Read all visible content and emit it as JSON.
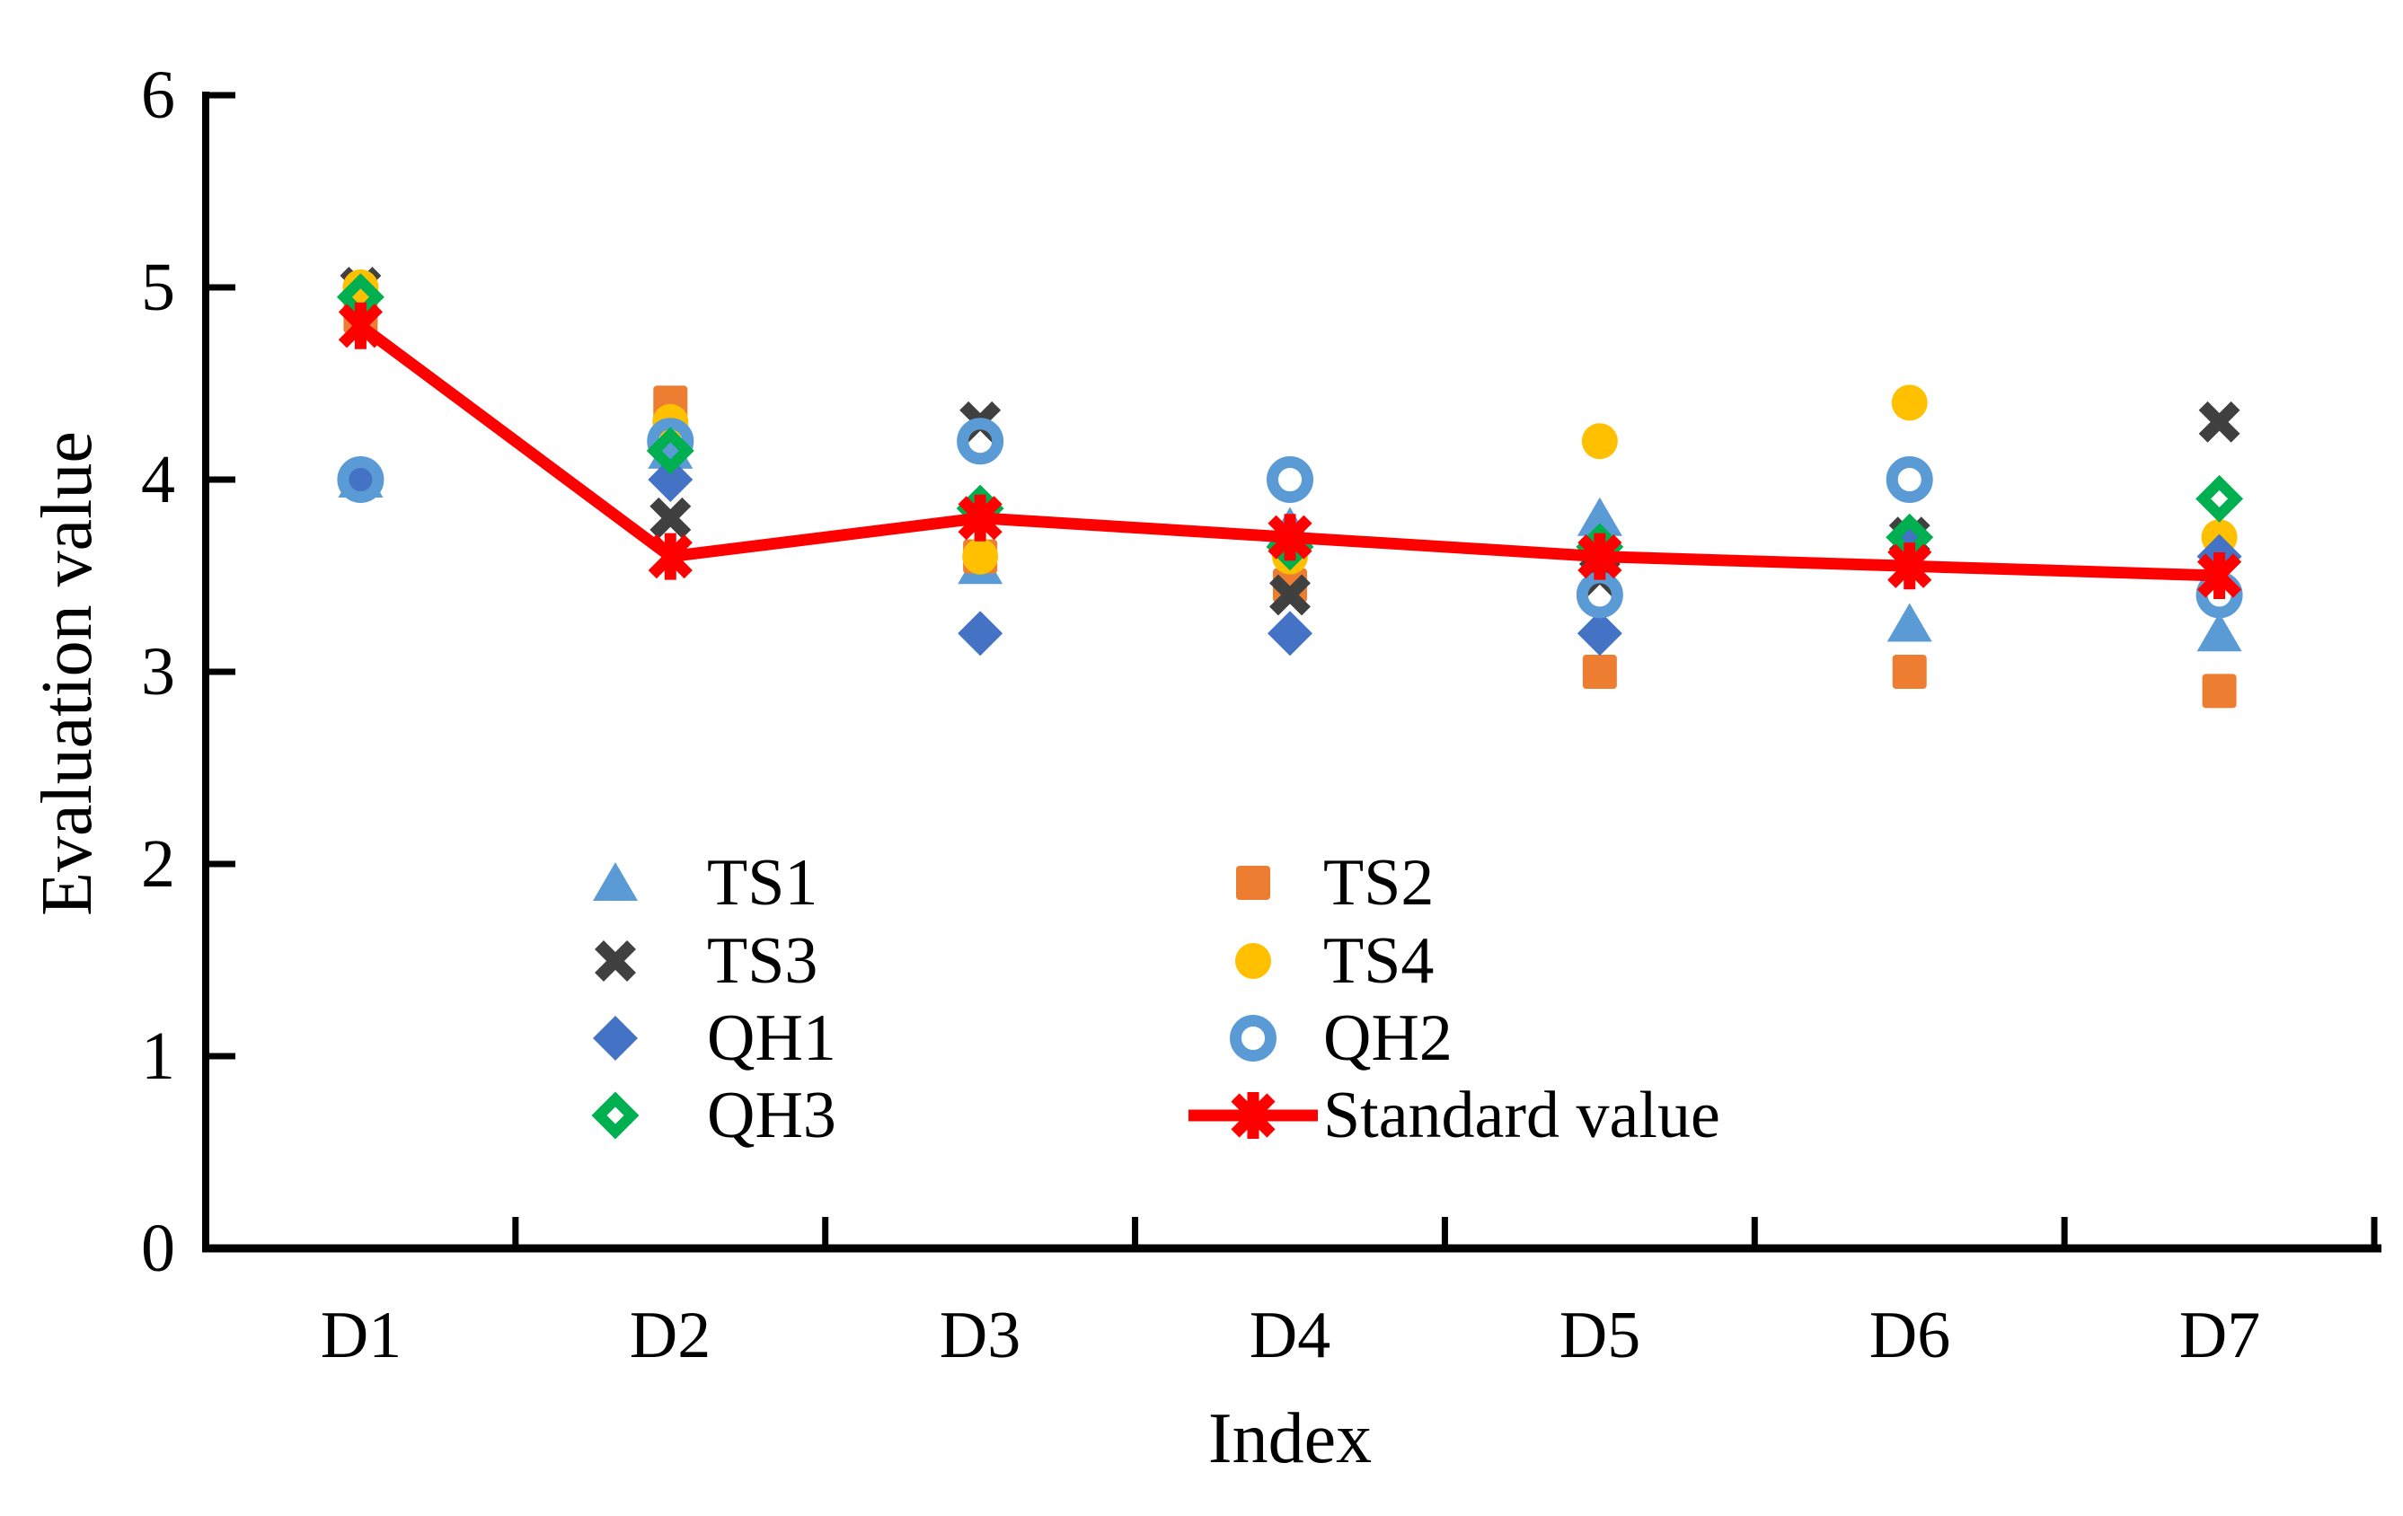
{
  "chart_data": {
    "type": "scatter",
    "title": "",
    "xlabel": "Index",
    "ylabel": "Evaluation value",
    "categories": [
      "D1",
      "D2",
      "D3",
      "D4",
      "D5",
      "D6",
      "D7"
    ],
    "ylim": [
      0,
      6
    ],
    "ytick_labels": [
      "0",
      "1",
      "2",
      "3",
      "4",
      "5",
      "6"
    ],
    "grid": "off",
    "legend_position": "inside-lower-center, two columns",
    "series": [
      {
        "name": "TS1",
        "marker": "triangle",
        "color": "#5B9BD5",
        "values": [
          4.0,
          4.15,
          3.55,
          3.75,
          3.8,
          3.25,
          3.2
        ]
      },
      {
        "name": "TS2",
        "marker": "square",
        "color": "#ED7D31",
        "values": [
          4.85,
          4.4,
          3.6,
          3.45,
          3.0,
          3.0,
          2.9
        ]
      },
      {
        "name": "TS3",
        "marker": "xmark",
        "color": "#404040",
        "values": [
          5.0,
          3.8,
          4.3,
          3.4,
          3.5,
          3.7,
          4.3
        ]
      },
      {
        "name": "TS4",
        "marker": "circle",
        "color": "#FFC000",
        "values": [
          5.0,
          4.3,
          3.6,
          3.6,
          4.2,
          4.4,
          3.7
        ]
      },
      {
        "name": "QH1",
        "marker": "diamond",
        "color": "#4472C4",
        "values": [
          4.0,
          4.0,
          3.2,
          3.2,
          3.2,
          3.7,
          3.6
        ]
      },
      {
        "name": "QH2",
        "marker": "ring",
        "color": "#5B9BD5",
        "values": [
          4.0,
          4.2,
          4.2,
          4.0,
          3.4,
          4.0,
          3.4
        ]
      },
      {
        "name": "QH3",
        "marker": "open-diamond",
        "color": "#00B050",
        "values": [
          4.95,
          4.15,
          3.85,
          3.65,
          3.65,
          3.7,
          3.9
        ]
      },
      {
        "name": "Standard value",
        "marker": "star-line",
        "color": "#FF0000",
        "values": [
          4.8,
          3.6,
          3.8,
          3.7,
          3.6,
          3.55,
          3.5
        ]
      }
    ],
    "legend_columns": [
      [
        "TS1",
        "TS3",
        "QH1",
        "QH3"
      ],
      [
        "TS2",
        "TS4",
        "QH2",
        "Standard value"
      ]
    ],
    "axis_color": "#000000"
  }
}
